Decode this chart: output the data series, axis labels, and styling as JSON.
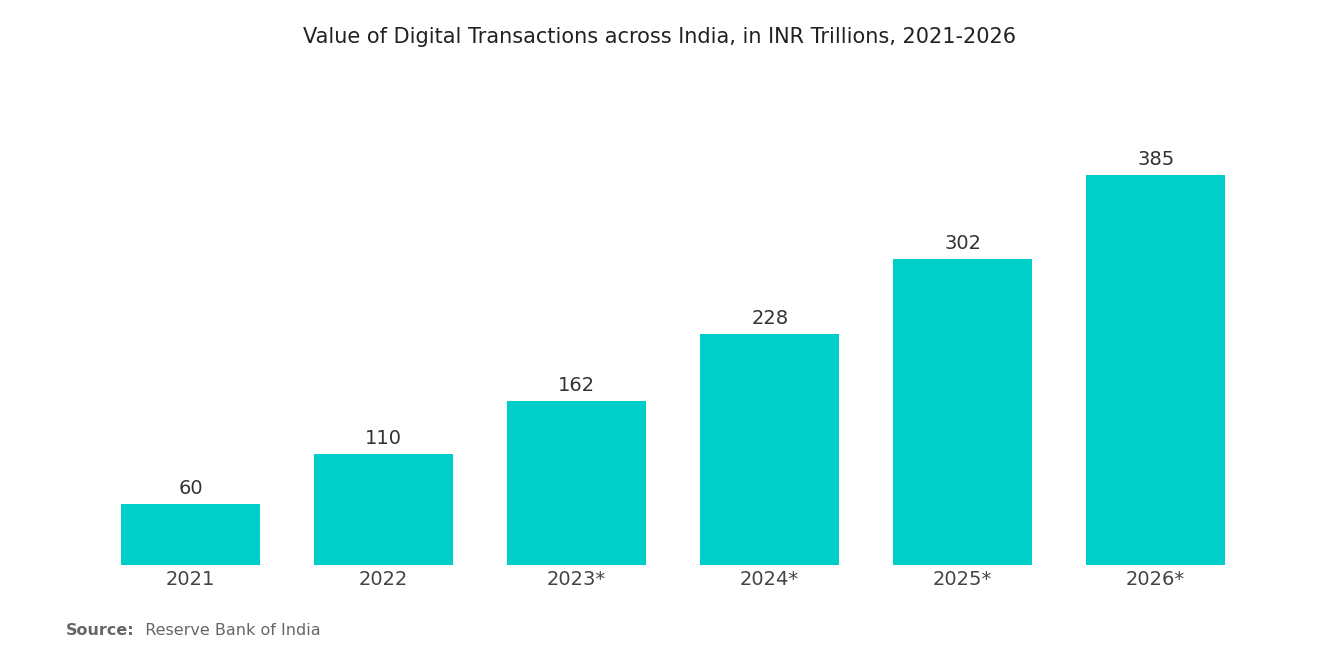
{
  "title": "Value of Digital Transactions across India, in INR Trillions, 2021-2026",
  "categories": [
    "2021",
    "2022",
    "2023*",
    "2024*",
    "2025*",
    "2026*"
  ],
  "values": [
    60,
    110,
    162,
    228,
    302,
    385
  ],
  "bar_color": "#00CFC9",
  "background_color": "#FFFFFF",
  "label_fontsize": 14,
  "title_fontsize": 15,
  "tick_fontsize": 14,
  "source_bold": "Source:",
  "source_rest": "  Reserve Bank of India",
  "ylim": [
    0,
    440
  ],
  "bar_width": 0.72
}
